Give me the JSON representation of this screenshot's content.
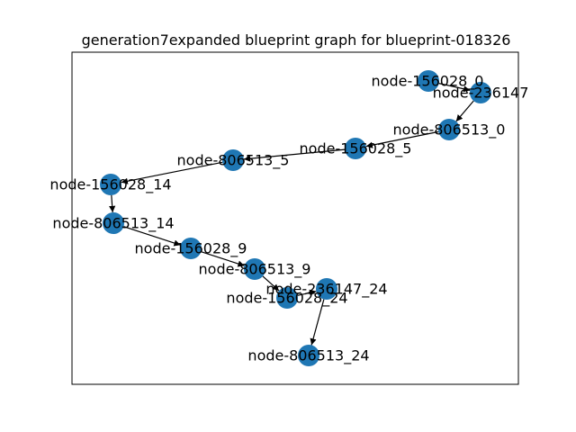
{
  "title": "generation7expanded blueprint graph for blueprint-018326",
  "colors": {
    "node": "#1f77b4",
    "edge": "#000000",
    "frame": "#000000",
    "background": "#ffffff"
  },
  "graph": {
    "nodes": [
      {
        "id": "node-156028_0",
        "label": "node-156028_0"
      },
      {
        "id": "node-236147",
        "label": "node-236147"
      },
      {
        "id": "node-806513_0",
        "label": "node-806513_0"
      },
      {
        "id": "node-156028_5",
        "label": "node-156028_5"
      },
      {
        "id": "node-806513_5",
        "label": "node-806513_5"
      },
      {
        "id": "node-156028_14",
        "label": "node-156028_14"
      },
      {
        "id": "node-806513_14",
        "label": "node-806513_14"
      },
      {
        "id": "node-156028_9",
        "label": "node-156028_9"
      },
      {
        "id": "node-806513_9",
        "label": "node-806513_9"
      },
      {
        "id": "node-236147_24",
        "label": "node-236147_24"
      },
      {
        "id": "node-156028_24",
        "label": "node-156028_24"
      },
      {
        "id": "node-806513_24",
        "label": "node-806513_24"
      }
    ],
    "edges": [
      {
        "from": "node-156028_0",
        "to": "node-236147"
      },
      {
        "from": "node-236147",
        "to": "node-806513_0"
      },
      {
        "from": "node-806513_0",
        "to": "node-156028_5"
      },
      {
        "from": "node-156028_5",
        "to": "node-806513_5"
      },
      {
        "from": "node-806513_5",
        "to": "node-156028_14"
      },
      {
        "from": "node-156028_14",
        "to": "node-806513_14"
      },
      {
        "from": "node-806513_14",
        "to": "node-156028_9"
      },
      {
        "from": "node-156028_9",
        "to": "node-806513_9"
      },
      {
        "from": "node-806513_9",
        "to": "node-156028_24"
      },
      {
        "from": "node-156028_24",
        "to": "node-236147_24"
      },
      {
        "from": "node-236147_24",
        "to": "node-806513_24"
      }
    ]
  }
}
